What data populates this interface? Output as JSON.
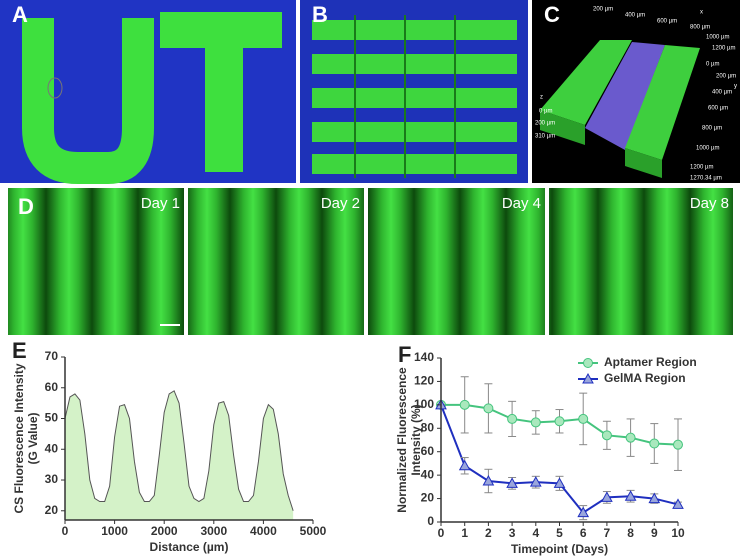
{
  "panel_labels": [
    "A",
    "B",
    "C",
    "D",
    "E",
    "F"
  ],
  "day_labels": [
    "Day 1",
    "Day 2",
    "Day 4",
    "Day 8"
  ],
  "c_annotations": [
    "200 µm",
    "400 µm",
    "600 µm",
    "x",
    "800 µm",
    "1000 µm",
    "1200 µm",
    "0 µm",
    "200 µm",
    "y",
    "400 µm",
    "600 µm",
    "800 µm",
    "1000 µm",
    "1200 µm",
    "1270.34 µm",
    "z",
    "0 µm",
    "200 µm",
    "310 µm"
  ],
  "chart_data": [
    {
      "type": "area",
      "xlabel": "Distance (µm)",
      "ylabel": [
        "CS Fluorescence Intensity",
        "(G Value)"
      ],
      "x": [
        0,
        100,
        200,
        300,
        400,
        500,
        600,
        700,
        800,
        900,
        1000,
        1100,
        1200,
        1300,
        1400,
        1500,
        1600,
        1700,
        1800,
        1900,
        2000,
        2100,
        2200,
        2300,
        2400,
        2500,
        2600,
        2700,
        2800,
        2900,
        3000,
        3100,
        3200,
        3300,
        3400,
        3500,
        3600,
        3700,
        3800,
        3900,
        4000,
        4100,
        4200,
        4300,
        4400,
        4500,
        4600
      ],
      "values": [
        50,
        57,
        58,
        56,
        45,
        30,
        24,
        23,
        23,
        28,
        44,
        54,
        54.5,
        50,
        36,
        26,
        23,
        23,
        25,
        38,
        52,
        58,
        59,
        55,
        42,
        28,
        24,
        23,
        24,
        33,
        48,
        55,
        55.5,
        51,
        38,
        27,
        23,
        23,
        25,
        36,
        50,
        54.5,
        53,
        45,
        32,
        25,
        20
      ],
      "color": "#d4f2c8",
      "line_color": "#555555",
      "xlim": [
        0,
        5000
      ],
      "xticks": [
        0,
        1000,
        2000,
        3000,
        4000,
        5000
      ],
      "ylim": [
        17,
        70
      ],
      "yticks": [
        20,
        30,
        40,
        50,
        60,
        70
      ]
    },
    {
      "type": "line",
      "xlabel": "Timepoint (Days)",
      "ylabel": [
        "Normalized Fluorescence",
        "Intensity (%)"
      ],
      "x": [
        0,
        1,
        2,
        3,
        4,
        5,
        6,
        7,
        8,
        9,
        10
      ],
      "series": [
        {
          "name": "Aptamer Region",
          "color": "#45c47e",
          "marker_fill": "#a9e8bd",
          "marker": "circle",
          "values": [
            100,
            100,
            97,
            88,
            85,
            86,
            88,
            74,
            72,
            67,
            66
          ],
          "errors": [
            0,
            24,
            21,
            15,
            10,
            10,
            22,
            12,
            16,
            17,
            22
          ]
        },
        {
          "name": "GelMA Region",
          "color": "#1f2fbf",
          "marker_fill": "#9aa6dc",
          "marker": "triangle",
          "values": [
            100,
            48,
            35,
            33,
            34,
            33,
            8,
            21,
            22,
            20,
            15
          ],
          "errors": [
            0,
            7,
            10,
            5,
            5,
            6,
            6,
            5,
            5,
            4,
            2
          ]
        }
      ],
      "xlim": [
        0,
        10
      ],
      "xticks": [
        0,
        1,
        2,
        3,
        4,
        5,
        6,
        7,
        8,
        9,
        10
      ],
      "ylim": [
        0,
        140
      ],
      "yticks": [
        0,
        20,
        40,
        60,
        80,
        100,
        120,
        140
      ],
      "legend": "upper right"
    }
  ]
}
